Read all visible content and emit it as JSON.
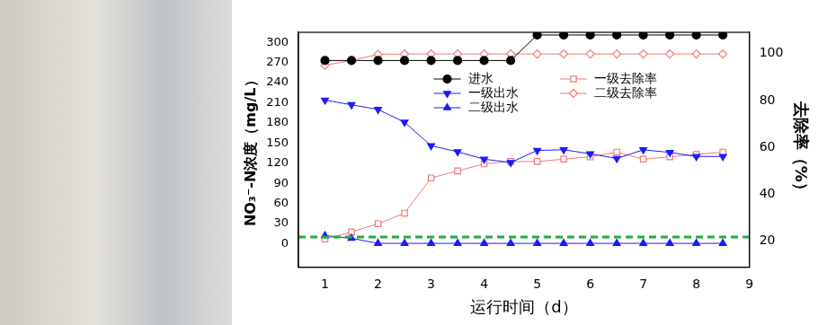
{
  "chart_data": {
    "type": "line",
    "x_label": "运行时间（d）",
    "y_label": "NO₃⁻-N浓度（mg/L）",
    "y2_label": "去除率（%）",
    "x": [
      1,
      1.5,
      2,
      2.5,
      3,
      3.5,
      4,
      4.5,
      5,
      5.5,
      6,
      6.5,
      7,
      7.5,
      8,
      8.5
    ],
    "xlim": [
      0.5,
      9
    ],
    "xticks": [
      1,
      2,
      3,
      4,
      5,
      6,
      7,
      8,
      9
    ],
    "ylim": [
      -35,
      315
    ],
    "yticks": [
      0,
      30,
      60,
      90,
      120,
      150,
      180,
      210,
      240,
      270,
      300
    ],
    "y2lim": [
      9,
      109
    ],
    "y2ticks": [
      20,
      40,
      60,
      80,
      100
    ],
    "grid": false,
    "legend": "upper center",
    "series": [
      {
        "name": "进水",
        "color": "#000000",
        "marker": "circle",
        "line_style": "solid",
        "values": [
          273,
          273,
          273,
          273,
          273,
          273,
          273,
          273,
          311,
          311,
          311,
          311,
          311,
          311,
          311,
          311
        ]
      },
      {
        "name": "一级出水",
        "color": "#1a1aff",
        "marker": "triangle_down",
        "line_style": "solid",
        "values": [
          214,
          207,
          200,
          181,
          146,
          137,
          126,
          121,
          139,
          140,
          134,
          127,
          140,
          136,
          130,
          130
        ]
      },
      {
        "name": "二级出水",
        "color": "#1a1aff",
        "marker": "triangle",
        "line_style": "solid",
        "values": [
          12,
          8,
          0.5,
          0.5,
          0.5,
          0.5,
          0.5,
          0.5,
          0.5,
          0.5,
          0.5,
          0.5,
          0.5,
          0.5,
          0.5,
          0.5
        ]
      },
      {
        "name": "一级去除率",
        "color": "#f07878",
        "marker": "square_open",
        "line_style": "solid",
        "axis": "y2",
        "values": [
          21,
          24,
          27.5,
          32,
          47,
          50,
          53,
          54,
          54,
          55,
          56,
          58,
          55,
          56,
          57,
          58
        ]
      },
      {
        "name": "二级去除率",
        "color": "#f07878",
        "marker": "diamond_open",
        "line_style": "solid",
        "axis": "y2",
        "values": [
          95,
          97,
          99.6,
          99.8,
          99.8,
          99.8,
          99.8,
          99.8,
          99.8,
          99.8,
          99.8,
          99.8,
          99.8,
          99.8,
          99.8,
          99.8
        ]
      }
    ],
    "reference_lines": [
      {
        "value": 10,
        "axis": "y",
        "color": "#1fae3c",
        "line_style": "dashed"
      }
    ]
  }
}
